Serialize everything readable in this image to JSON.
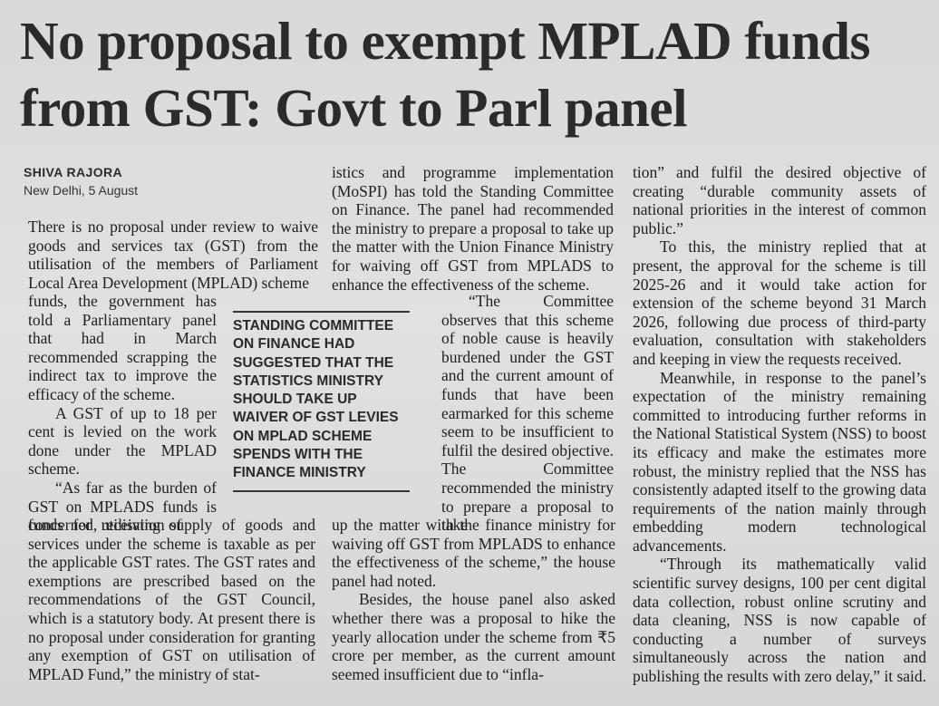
{
  "article": {
    "headline": "No proposal to exempt MPLAD funds from GST: Govt to Parl panel",
    "author": "SHIVA RAJORA",
    "dateline": "New Delhi, 5 August",
    "col1_p1": "There is no proposal under review to waive goods and services tax (GST) from the utilisation of the members of Parliament Local Area Development (MPLAD) scheme",
    "col1_p1_cont": "funds, the government has told a Parliamentary panel that had in March recommended scrapping the indirect tax to improve the efficacy of the scheme.",
    "col1_p2": "A GST of up to 18 per cent is levied on the work done under the MPLAD scheme.",
    "col1_p3_start": "“As far as the burden of GST on MPLADS funds is concerned, utilisation of",
    "col1_p3_cont": "funds for receiving supply of goods and services under the scheme is taxable as per the applicable GST rates. The GST rates and exemptions are prescribed based on the recommendations of the GST Council, which is a statutory body. At present there is no proposal under consideration for granting any exemption of GST on utilisation of MPLAD Fund,” the ministry of stat-",
    "col2_p1": "istics and programme implementation (MoSPI) has told the Standing Committee on Finance. The panel had recommended the ministry to prepare a proposal to take up the matter with the Union Finance Ministry for waiving off GST from MPLADS to enhance the effectiveness of the scheme.",
    "col2_p2_start": "“The Committee observes that this scheme of noble cause is heavily burdened under the GST and the current amount of funds that have been earmarked for this scheme seem to be insufficient to fulfil the desired objective. The Committee recommended the ministry to prepare a proposal to take",
    "col2_p2_cont": "up the matter with the finance ministry for waiving off GST from MPLADS to enhance the effectiveness of the scheme,” the house panel had noted.",
    "col2_p3": "Besides, the house panel also asked whether there was a proposal to hike the yearly allocation under the scheme from ₹5 crore per member, as the current amount seemed insufficient due to “infla-",
    "col3_p1": "tion” and fulfil the desired objective of creating “durable community assets of national priorities in the interest of common public.”",
    "col3_p2": "To this, the ministry replied that at present, the approval for the scheme is till 2025-26 and it would take action for extension of the scheme beyond 31 March 2026, following due process of third-party evaluation, consultation with stakeholders and keeping in view the requests received.",
    "col3_p3": "Meanwhile, in response to the panel’s expectation of the ministry remaining committed to introducing further reforms in the National Statistical System (NSS) to boost its efficacy and make the estimates more robust, the ministry replied that the NSS has consistently adapted itself to the growing data requirements of the nation mainly through embedding modern technological advancements.",
    "col3_p4": "“Through its mathematically valid scientific survey designs, 100 per cent digital data collection, robust online scrutiny and data cleaning, NSS is now capable of conducting a number of surveys simultaneously across the nation and publishing the results with zero delay,” it said.",
    "pullquote": "STANDING COMMITTEE ON FINANCE HAD SUGGESTED THAT THE STATISTICS MINISTRY SHOULD TAKE UP WAIVER OF GST LEVIES ON MPLAD SCHEME SPENDS WITH THE FINANCE MINISTRY"
  }
}
